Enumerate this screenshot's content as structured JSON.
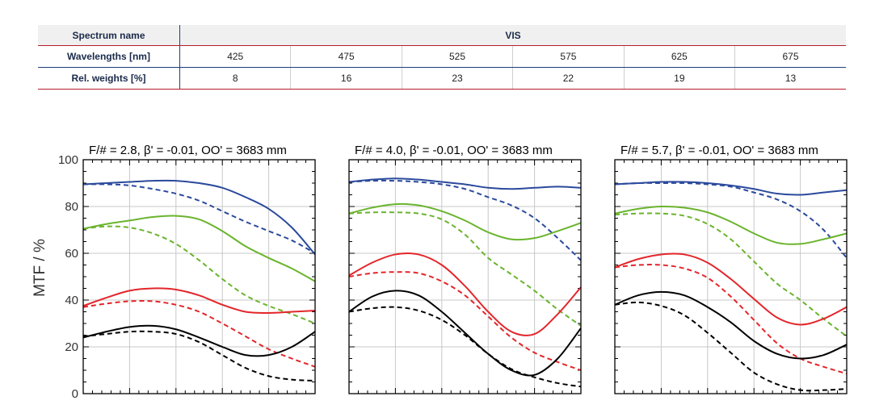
{
  "spectrum_table": {
    "name_label": "Spectrum name",
    "name_value": "VIS",
    "wavelength_label": "Wavelengths [nm]",
    "wavelengths": [
      "425",
      "475",
      "525",
      "575",
      "625",
      "675"
    ],
    "weights_label": "Rel. weights [%]",
    "weights": [
      "8",
      "16",
      "23",
      "22",
      "19",
      "13"
    ]
  },
  "colors": {
    "blue": "#2b4a9c",
    "green": "#6ab42d",
    "red": "#e3262b",
    "black": "#000000",
    "grid": "#c8c8c8",
    "table_red": "#b51e2c",
    "table_blue": "#1f3f77"
  },
  "chart_data": {
    "type": "line",
    "ylabel": "MTF / %",
    "ylim": [
      0,
      100
    ],
    "yticks": [
      "0",
      "20",
      "40",
      "60",
      "80",
      "100"
    ],
    "xlim": [
      0,
      1
    ],
    "grid": true,
    "line_styles": {
      "solid": "solid",
      "dashed": "dashed"
    },
    "panels": [
      {
        "title": "F/# = 2.8, β' = -0.01, OO' = 3683 mm",
        "series": [
          {
            "color": "blue",
            "style": "solid",
            "x": [
              0,
              0.1,
              0.2,
              0.3,
              0.4,
              0.5,
              0.6,
              0.7,
              0.8,
              0.9,
              1.0
            ],
            "y": [
              89.5,
              90,
              90.5,
              91,
              91,
              90,
              88,
              84,
              79,
              71,
              59.5
            ]
          },
          {
            "color": "blue",
            "style": "dashed",
            "x": [
              0,
              0.1,
              0.2,
              0.3,
              0.4,
              0.5,
              0.6,
              0.7,
              0.8,
              0.9,
              1.0
            ],
            "y": [
              89.5,
              89.5,
              89,
              87.5,
              85.5,
              82.5,
              78,
              73.5,
              69.5,
              65.5,
              60
            ]
          },
          {
            "color": "green",
            "style": "solid",
            "x": [
              0,
              0.1,
              0.2,
              0.3,
              0.4,
              0.5,
              0.6,
              0.7,
              0.8,
              0.9,
              1.0
            ],
            "y": [
              70.5,
              72.5,
              74,
              75.5,
              76,
              74.5,
              69.5,
              63,
              58,
              53.5,
              48
            ]
          },
          {
            "color": "green",
            "style": "dashed",
            "x": [
              0,
              0.1,
              0.2,
              0.3,
              0.4,
              0.5,
              0.6,
              0.7,
              0.8,
              0.9,
              1.0
            ],
            "y": [
              70.5,
              71.5,
              71,
              68.5,
              64,
              57,
              49,
              42,
              37.5,
              34,
              30
            ]
          },
          {
            "color": "red",
            "style": "solid",
            "x": [
              0,
              0.1,
              0.2,
              0.3,
              0.4,
              0.5,
              0.6,
              0.7,
              0.8,
              0.9,
              1.0
            ],
            "y": [
              37.5,
              41,
              44,
              45,
              44.5,
              42,
              38,
              35,
              34.5,
              35,
              35.5
            ]
          },
          {
            "color": "red",
            "style": "dashed",
            "x": [
              0,
              0.1,
              0.2,
              0.3,
              0.4,
              0.5,
              0.6,
              0.7,
              0.8,
              0.9,
              1.0
            ],
            "y": [
              37,
              38.5,
              39.5,
              39.5,
              38,
              35,
              30,
              24.5,
              19,
              15,
              11.5
            ]
          },
          {
            "color": "black",
            "style": "solid",
            "x": [
              0,
              0.1,
              0.2,
              0.3,
              0.4,
              0.5,
              0.6,
              0.7,
              0.8,
              0.9,
              1.0
            ],
            "y": [
              24,
              26.5,
              28.5,
              29,
              27.5,
              24,
              20,
              16.5,
              16.5,
              20,
              26.5
            ]
          },
          {
            "color": "black",
            "style": "dashed",
            "x": [
              0,
              0.1,
              0.2,
              0.3,
              0.4,
              0.5,
              0.6,
              0.7,
              0.8,
              0.9,
              1.0
            ],
            "y": [
              24.5,
              25.5,
              26.5,
              26.5,
              25.5,
              22,
              16.5,
              11,
              7.5,
              6,
              5.5
            ]
          }
        ]
      },
      {
        "title": "F/# = 4.0, β' = -0.01, OO' = 3683 mm",
        "series": [
          {
            "color": "blue",
            "style": "solid",
            "x": [
              0,
              0.1,
              0.2,
              0.3,
              0.4,
              0.5,
              0.6,
              0.7,
              0.8,
              0.9,
              1.0
            ],
            "y": [
              90.5,
              91.5,
              92,
              91.5,
              90.5,
              89.5,
              88,
              87.5,
              88,
              88.5,
              88
            ]
          },
          {
            "color": "blue",
            "style": "dashed",
            "x": [
              0,
              0.1,
              0.2,
              0.3,
              0.4,
              0.5,
              0.6,
              0.7,
              0.8,
              0.9,
              1.0
            ],
            "y": [
              90.5,
              91,
              91,
              90.5,
              89.5,
              87.5,
              84,
              80.5,
              75,
              66.5,
              57
            ]
          },
          {
            "color": "green",
            "style": "solid",
            "x": [
              0,
              0.1,
              0.2,
              0.3,
              0.4,
              0.5,
              0.6,
              0.7,
              0.8,
              0.9,
              1.0
            ],
            "y": [
              77,
              79.5,
              81,
              80.5,
              78,
              74,
              69,
              66,
              66.5,
              69.5,
              73
            ]
          },
          {
            "color": "green",
            "style": "dashed",
            "x": [
              0,
              0.1,
              0.2,
              0.3,
              0.4,
              0.5,
              0.6,
              0.7,
              0.8,
              0.9,
              1.0
            ],
            "y": [
              77,
              77.5,
              77.5,
              77,
              74.5,
              68,
              58,
              51,
              44,
              36,
              29
            ]
          },
          {
            "color": "red",
            "style": "solid",
            "x": [
              0,
              0.1,
              0.2,
              0.3,
              0.4,
              0.5,
              0.6,
              0.7,
              0.8,
              0.9,
              1.0
            ],
            "y": [
              50.5,
              56,
              59.5,
              59.5,
              55,
              46,
              35,
              26.5,
              25.5,
              34,
              45.5
            ]
          },
          {
            "color": "red",
            "style": "dashed",
            "x": [
              0,
              0.1,
              0.2,
              0.3,
              0.4,
              0.5,
              0.6,
              0.7,
              0.8,
              0.9,
              1.0
            ],
            "y": [
              50,
              51.5,
              52,
              51.5,
              48,
              42,
              33,
              24,
              17.5,
              13.5,
              10
            ]
          },
          {
            "color": "black",
            "style": "solid",
            "x": [
              0,
              0.1,
              0.2,
              0.3,
              0.4,
              0.5,
              0.6,
              0.7,
              0.8,
              0.9,
              1.0
            ],
            "y": [
              35,
              41.5,
              44,
              42,
              35,
              26,
              17,
              10,
              8,
              15,
              28
            ]
          },
          {
            "color": "black",
            "style": "dashed",
            "x": [
              0,
              0.1,
              0.2,
              0.3,
              0.4,
              0.5,
              0.6,
              0.7,
              0.8,
              0.9,
              1.0
            ],
            "y": [
              35,
              36.5,
              37,
              35.5,
              31.5,
              25,
              17,
              10.5,
              7,
              4.5,
              3
            ]
          }
        ]
      },
      {
        "title": "F/# = 5.7, β' = -0.01, OO' = 3683 mm",
        "series": [
          {
            "color": "blue",
            "style": "solid",
            "x": [
              0,
              0.1,
              0.2,
              0.3,
              0.4,
              0.5,
              0.6,
              0.7,
              0.8,
              0.9,
              1.0
            ],
            "y": [
              89.5,
              90,
              90.5,
              90.5,
              90,
              89,
              87.5,
              85.5,
              85,
              86,
              87
            ]
          },
          {
            "color": "blue",
            "style": "dashed",
            "x": [
              0,
              0.1,
              0.2,
              0.3,
              0.4,
              0.5,
              0.6,
              0.7,
              0.8,
              0.9,
              1.0
            ],
            "y": [
              89.5,
              90,
              90,
              90,
              89.5,
              88.5,
              86,
              83,
              78,
              70,
              58
            ]
          },
          {
            "color": "green",
            "style": "solid",
            "x": [
              0,
              0.1,
              0.2,
              0.3,
              0.4,
              0.5,
              0.6,
              0.7,
              0.8,
              0.9,
              1.0
            ],
            "y": [
              77,
              79,
              80,
              79.5,
              77.5,
              73.5,
              68.5,
              64.5,
              64,
              66,
              68.5
            ]
          },
          {
            "color": "green",
            "style": "dashed",
            "x": [
              0,
              0.1,
              0.2,
              0.3,
              0.4,
              0.5,
              0.6,
              0.7,
              0.8,
              0.9,
              1.0
            ],
            "y": [
              76.5,
              77,
              77,
              76,
              72.5,
              66,
              56.5,
              47,
              40,
              32,
              24.5
            ]
          },
          {
            "color": "red",
            "style": "solid",
            "x": [
              0,
              0.1,
              0.2,
              0.3,
              0.4,
              0.5,
              0.6,
              0.7,
              0.8,
              0.9,
              1.0
            ],
            "y": [
              54,
              57.5,
              59.5,
              59.5,
              56,
              49,
              40.5,
              32.5,
              29.5,
              32,
              37
            ]
          },
          {
            "color": "red",
            "style": "dashed",
            "x": [
              0,
              0.1,
              0.2,
              0.3,
              0.4,
              0.5,
              0.6,
              0.7,
              0.8,
              0.9,
              1.0
            ],
            "y": [
              54,
              55,
              55,
              53.5,
              49.5,
              41.5,
              31.5,
              21.5,
              15,
              11.5,
              8.5
            ]
          },
          {
            "color": "black",
            "style": "solid",
            "x": [
              0,
              0.1,
              0.2,
              0.3,
              0.4,
              0.5,
              0.6,
              0.7,
              0.8,
              0.9,
              1.0
            ],
            "y": [
              38,
              42,
              43.5,
              42,
              37,
              30.5,
              22.5,
              17,
              15,
              16.5,
              21
            ]
          },
          {
            "color": "black",
            "style": "dashed",
            "x": [
              0,
              0.1,
              0.2,
              0.3,
              0.4,
              0.5,
              0.6,
              0.7,
              0.8,
              0.9,
              1.0
            ],
            "y": [
              38,
              39,
              37.5,
              33.5,
              26,
              17.5,
              9,
              4,
              1.5,
              1.5,
              2
            ]
          }
        ]
      }
    ]
  }
}
